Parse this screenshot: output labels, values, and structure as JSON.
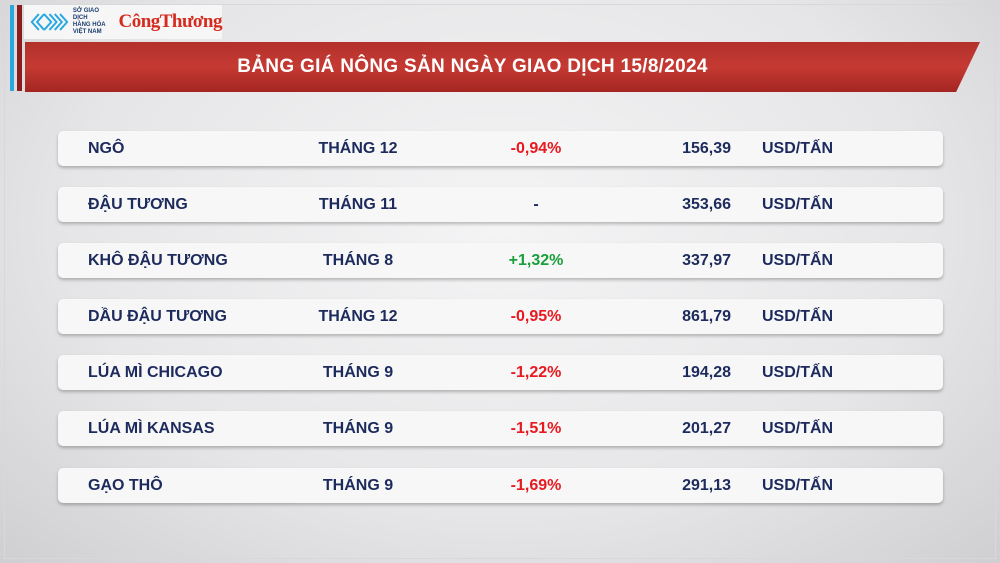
{
  "logo": {
    "org_lines": [
      "SỞ GIAO DỊCH",
      "HÀNG HÓA",
      "VIỆT NAM"
    ],
    "brand": "CôngThương"
  },
  "title": "BẢNG GIÁ NÔNG SẢN NGÀY GIAO DỊCH 15/8/2024",
  "colors": {
    "negative": "#e8191f",
    "positive": "#1aa03a",
    "neutral": "#1d2b5c",
    "banner": "#c0352f"
  },
  "rows": [
    {
      "name": "NGÔ",
      "month": "THÁNG 12",
      "change": "-0,94%",
      "trend": "negative",
      "price": "156,39",
      "unit": "USD/TẤN"
    },
    {
      "name": "ĐẬU TƯƠNG",
      "month": "THÁNG 11",
      "change": "-",
      "trend": "neutral",
      "price": "353,66",
      "unit": "USD/TẤN"
    },
    {
      "name": "KHÔ ĐẬU TƯƠNG",
      "month": "THÁNG 8",
      "change": "+1,32%",
      "trend": "positive",
      "price": "337,97",
      "unit": "USD/TẤN"
    },
    {
      "name": "DẦU ĐẬU TƯƠNG",
      "month": "THÁNG 12",
      "change": "-0,95%",
      "trend": "negative",
      "price": "861,79",
      "unit": "USD/TẤN"
    },
    {
      "name": "LÚA MÌ CHICAGO",
      "month": "THÁNG 9",
      "change": "-1,22%",
      "trend": "negative",
      "price": "194,28",
      "unit": "USD/TẤN"
    },
    {
      "name": "LÚA MÌ KANSAS",
      "month": "THÁNG 9",
      "change": "-1,51%",
      "trend": "negative",
      "price": "201,27",
      "unit": "USD/TẤN"
    },
    {
      "name": "GẠO THÔ",
      "month": "THÁNG 9",
      "change": "-1,69%",
      "trend": "negative",
      "price": "291,13",
      "unit": "USD/TẤN"
    }
  ]
}
